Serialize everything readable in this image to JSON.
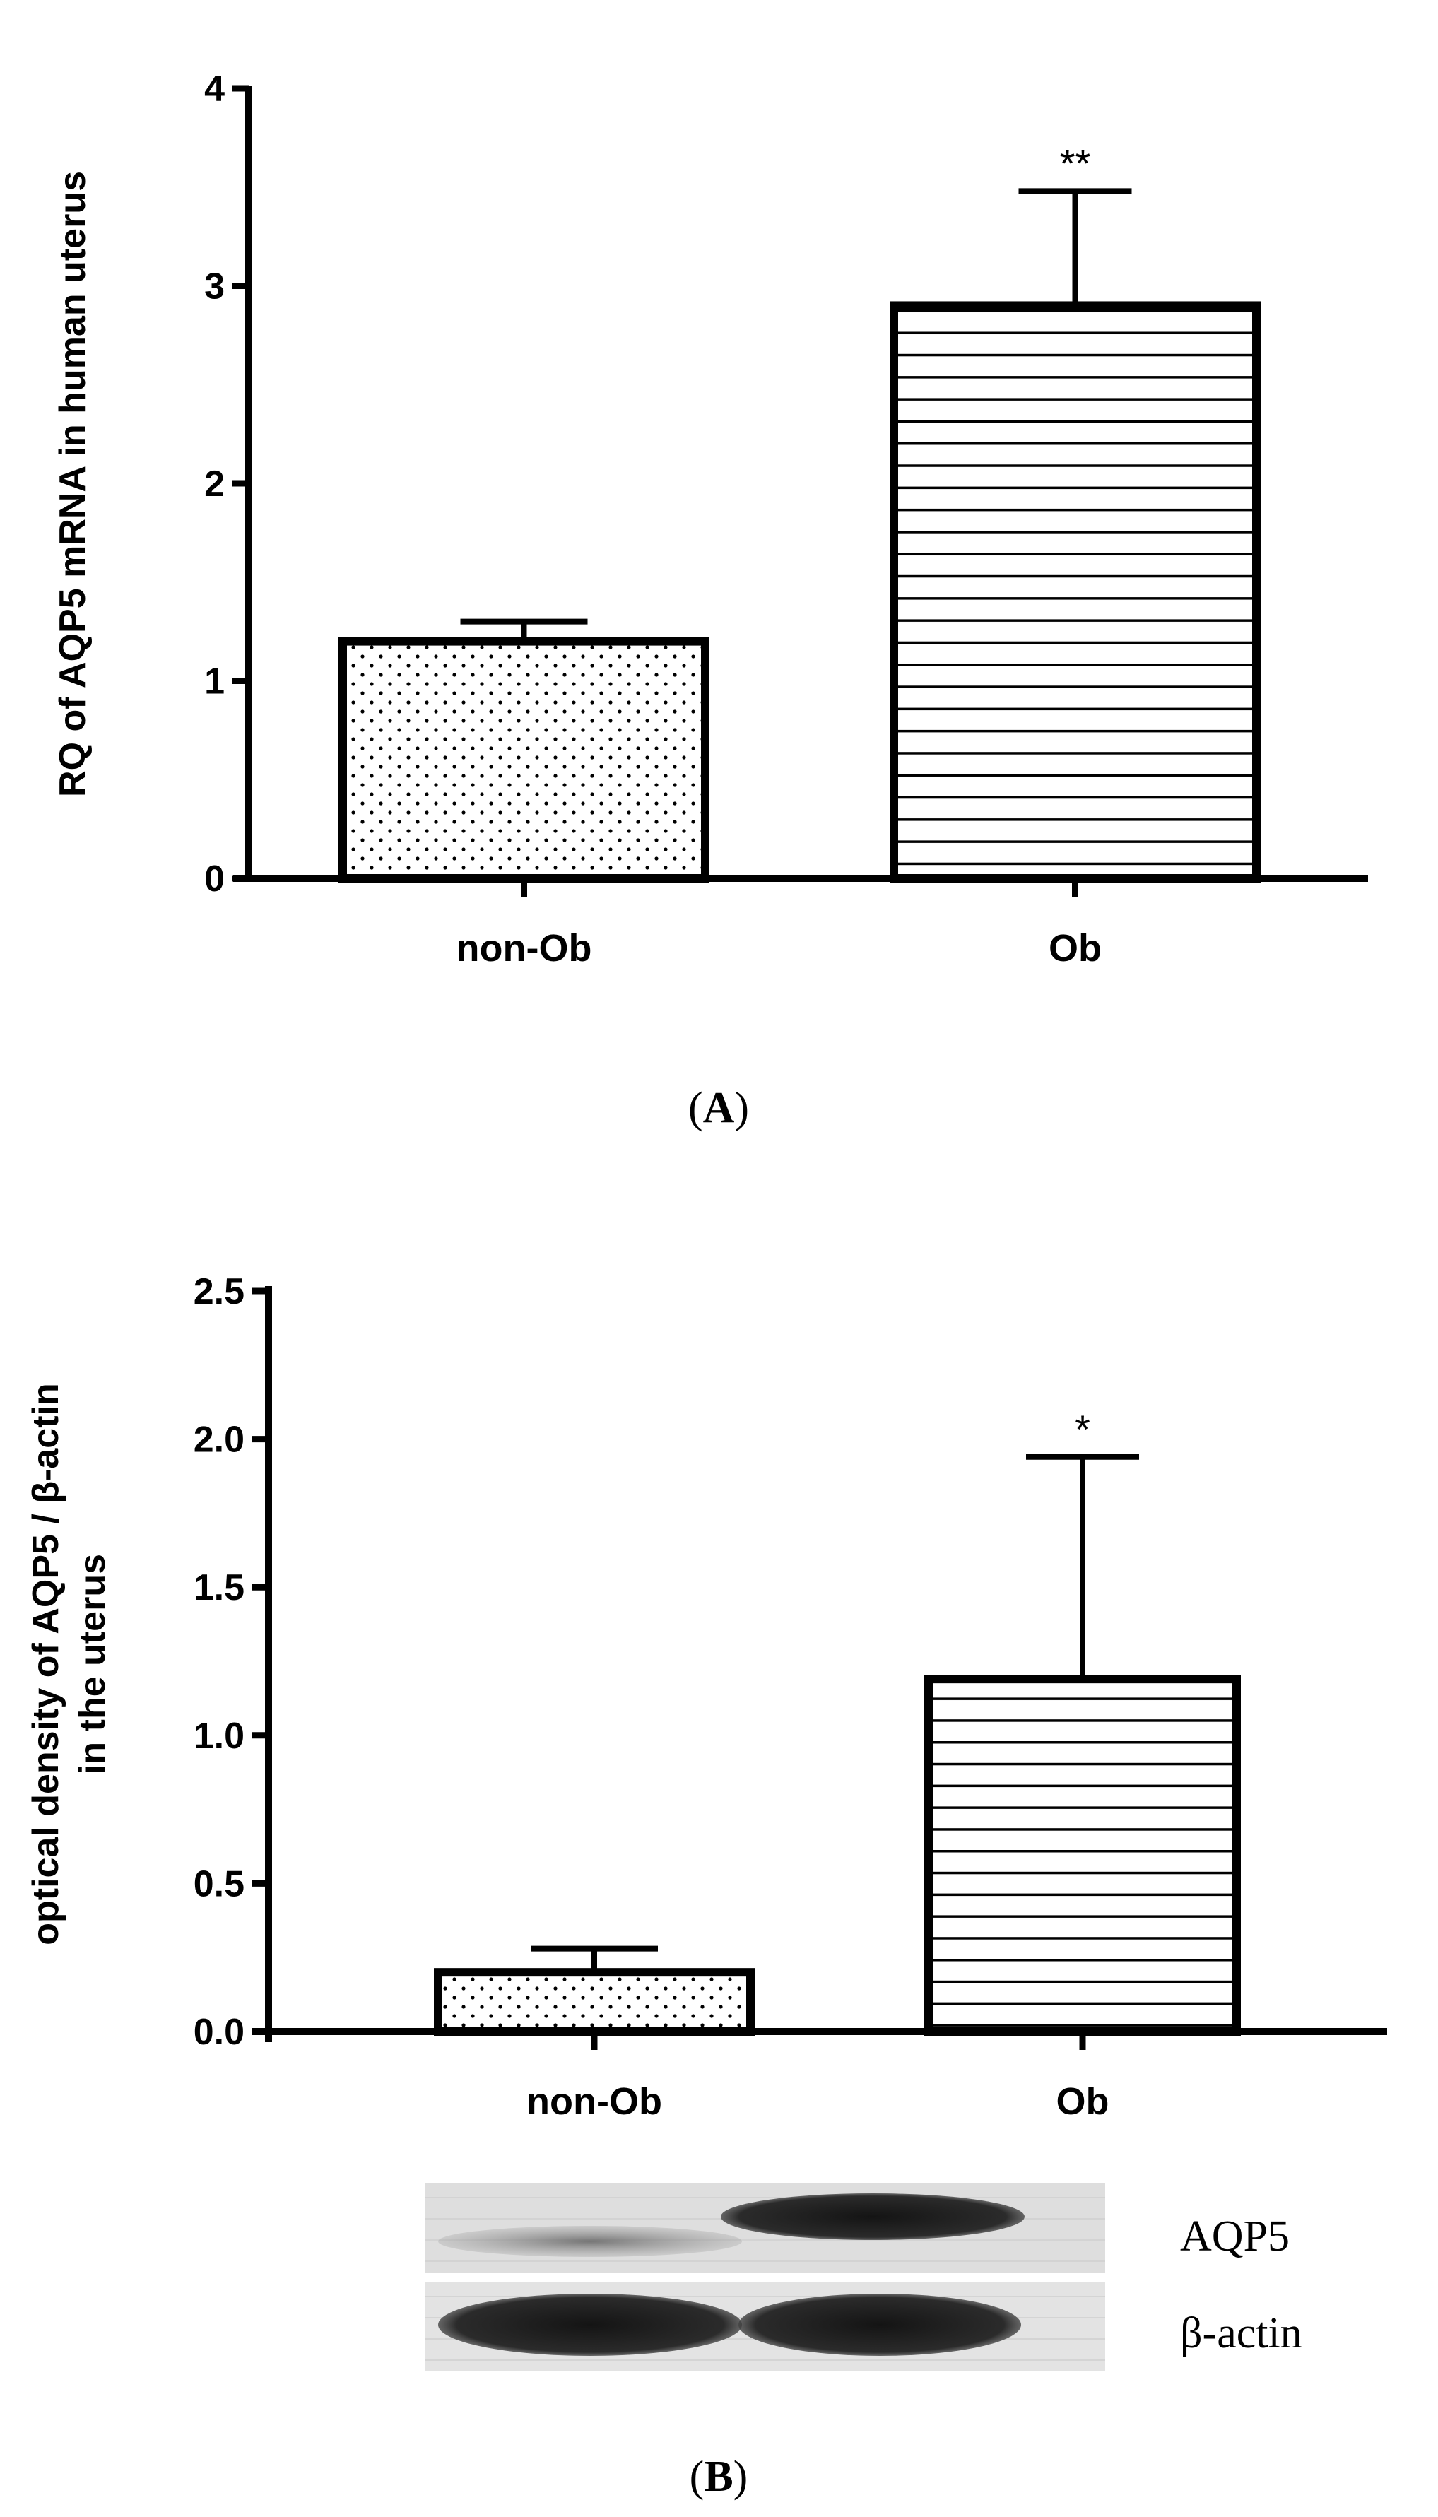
{
  "chart_data": [
    {
      "type": "bar",
      "panel": "A",
      "panel_label": "A",
      "ylabel": "RQ of AQP5 mRNA in human uterus",
      "categories": [
        "non-Ob",
        "Ob"
      ],
      "values": [
        1.2,
        2.9
      ],
      "errors": [
        0.1,
        0.58
      ],
      "significance": [
        "",
        "**"
      ],
      "ylim": [
        0,
        4
      ],
      "yticks": [
        0,
        1,
        2,
        3,
        4
      ],
      "ytick_labels": [
        "0",
        "1",
        "2",
        "3",
        "4"
      ],
      "patterns": [
        "dots",
        "hlines"
      ]
    },
    {
      "type": "bar",
      "panel": "B",
      "panel_label": "B",
      "ylabel_line1": "optical density of AQP5 / β-actin",
      "ylabel_line2": "in the uterus",
      "categories": [
        "non-Ob",
        "Ob"
      ],
      "values": [
        0.2,
        1.19
      ],
      "errors": [
        0.08,
        0.75
      ],
      "significance": [
        "",
        "*"
      ],
      "ylim": [
        0,
        2.5
      ],
      "yticks": [
        0,
        0.5,
        1.0,
        1.5,
        2.0,
        2.5
      ],
      "ytick_labels": [
        "0.0",
        "0.5",
        "1.0",
        "1.5",
        "2.0",
        "2.5"
      ],
      "patterns": [
        "dots",
        "hlines"
      ]
    }
  ],
  "blot": {
    "labels": [
      "AQP5",
      "β-actin"
    ]
  }
}
